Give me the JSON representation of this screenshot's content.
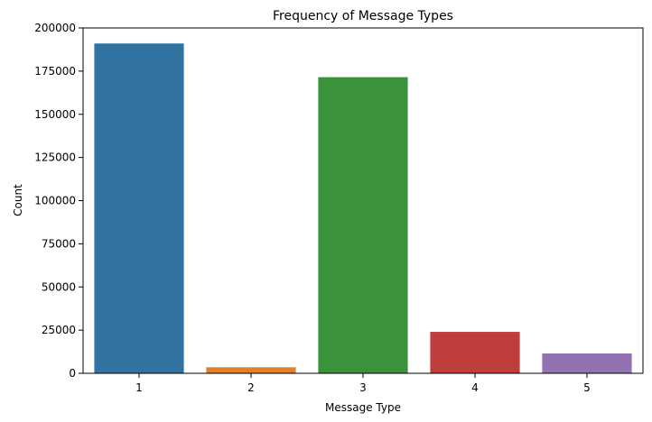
{
  "chart_data": {
    "type": "bar",
    "title": "Frequency of Message Types",
    "xlabel": "Message Type",
    "ylabel": "Count",
    "categories": [
      "1",
      "2",
      "3",
      "4",
      "5"
    ],
    "values": [
      191000,
      3500,
      171500,
      24000,
      11500
    ],
    "colors": [
      "#3274a1",
      "#e1812c",
      "#3a923a",
      "#c03d3e",
      "#9372b2"
    ],
    "ylim": [
      0,
      200000
    ],
    "yticks": [
      0,
      25000,
      50000,
      75000,
      100000,
      125000,
      150000,
      175000,
      200000
    ],
    "ytick_labels": [
      "0",
      "25000",
      "50000",
      "75000",
      "100000",
      "125000",
      "150000",
      "175000",
      "200000"
    ],
    "grid": false,
    "legend": false
  }
}
